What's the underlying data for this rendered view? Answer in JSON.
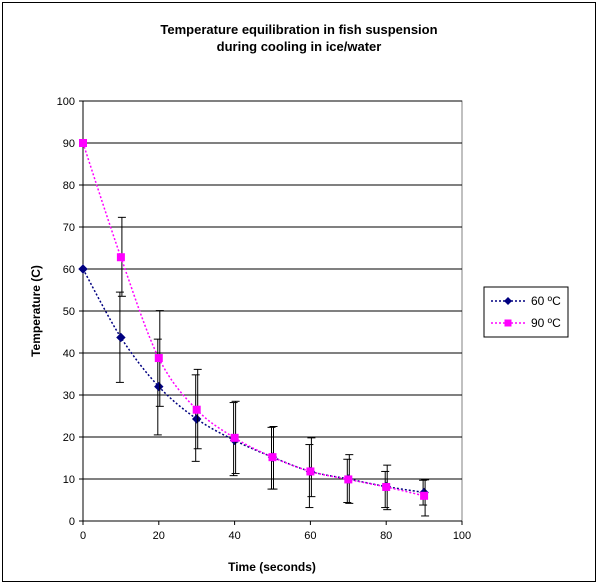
{
  "chart_data": {
    "type": "scatter",
    "title_lines": [
      "Temperature equilibration in fish suspension",
      "during cooling in ice/water"
    ],
    "xlabel": "Time (seconds)",
    "ylabel": "Temperature (C)",
    "xlim": [
      0,
      100
    ],
    "ylim": [
      0,
      100
    ],
    "xticks": [
      0,
      20,
      40,
      60,
      80,
      100
    ],
    "yticks": [
      0,
      10,
      20,
      30,
      40,
      50,
      60,
      70,
      80,
      90,
      100
    ],
    "x_tick_labels": [
      "0",
      "20",
      "40",
      "60",
      "80",
      "100"
    ],
    "y_tick_labels": [
      "0",
      "10",
      "20",
      "30",
      "40",
      "50",
      "60",
      "70",
      "80",
      "90",
      "100"
    ],
    "grid": "horizontal",
    "legend_position": "right",
    "series": [
      {
        "name": "60 ºC",
        "color": "#000080",
        "marker": "diamond",
        "line": "dotted",
        "x": [
          0,
          10,
          20,
          30,
          40,
          50,
          60,
          70,
          80,
          90
        ],
        "y": [
          60,
          43.7,
          32,
          24.3,
          19.2,
          15.2,
          11.8,
          10,
          8.2,
          6.8
        ],
        "err_low": [
          null,
          33,
          20.5,
          14.2,
          10.8,
          7.6,
          3.2,
          4.4,
          3.2,
          3.8
        ],
        "err_high": [
          null,
          54.5,
          43.3,
          34.8,
          28.2,
          22.3,
          18.2,
          14.7,
          11.8,
          9.7
        ]
      },
      {
        "name": "90 ºC",
        "color": "#FF00FF",
        "marker": "square",
        "line": "dotted",
        "x": [
          0,
          10,
          20,
          30,
          40,
          50,
          60,
          70,
          80,
          90
        ],
        "y": [
          90,
          62.8,
          38.8,
          26.5,
          19.8,
          15.2,
          11.8,
          9.9,
          8.1,
          6
        ],
        "err_low": [
          null,
          53.5,
          27.3,
          17.2,
          11.3,
          7.6,
          5.8,
          4.2,
          2.7,
          1.2
        ],
        "err_high": [
          null,
          72.3,
          50.1,
          36.1,
          28.5,
          22.5,
          19.8,
          15.8,
          13.3,
          9.8
        ]
      }
    ]
  }
}
